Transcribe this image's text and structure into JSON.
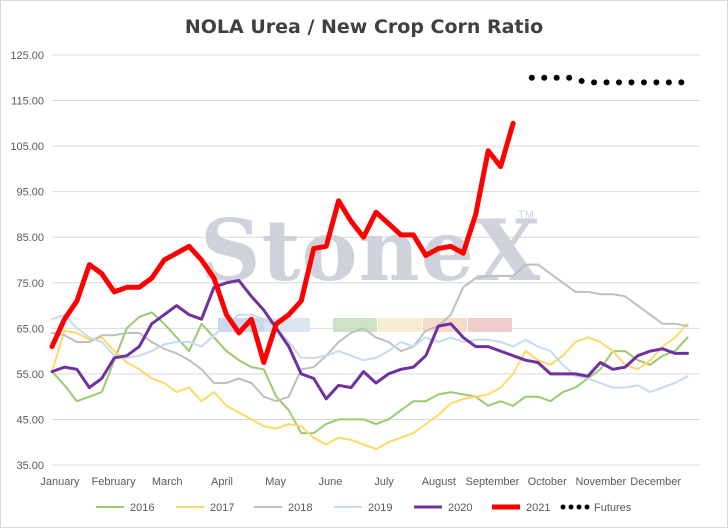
{
  "watermark": {
    "text": "StoneX",
    "tm": "TM"
  },
  "chart_data": {
    "type": "line",
    "title": "NOLA Urea / New Crop Corn Ratio",
    "xlabel": "",
    "ylabel": "",
    "ylim": [
      35,
      125
    ],
    "xlim": [
      0,
      52
    ],
    "y_ticks": [
      "35.00",
      "45.00",
      "55.00",
      "65.00",
      "75.00",
      "85.00",
      "95.00",
      "105.00",
      "115.00",
      "125.00"
    ],
    "x_ticks": [
      {
        "label": "January",
        "x": 0
      },
      {
        "label": "February",
        "x": 4.3
      },
      {
        "label": "March",
        "x": 8.6
      },
      {
        "label": "April",
        "x": 13
      },
      {
        "label": "May",
        "x": 17.3
      },
      {
        "label": "June",
        "x": 21.7
      },
      {
        "label": "July",
        "x": 26
      },
      {
        "label": "August",
        "x": 30.4
      },
      {
        "label": "September",
        "x": 34.7
      },
      {
        "label": "October",
        "x": 39.1
      },
      {
        "label": "November",
        "x": 43.4
      },
      {
        "label": "December",
        "x": 47.8
      }
    ],
    "grid": true,
    "legend": "bottom",
    "series": [
      {
        "name": "2016",
        "color": "#9ccb6d",
        "width": 2,
        "style": "solid",
        "values": [
          55.5,
          52.5,
          49,
          50,
          51,
          58,
          65,
          67.5,
          68.5,
          66,
          63,
          60,
          66,
          63,
          60,
          58,
          56.5,
          56,
          50,
          47,
          42,
          42,
          44,
          45,
          45,
          45,
          44,
          45,
          47,
          49,
          49,
          50.5,
          51,
          50.5,
          50,
          48,
          49,
          48,
          50,
          50,
          49,
          51,
          52,
          54,
          56,
          60,
          60,
          58,
          57,
          59,
          60,
          63
        ]
      },
      {
        "name": "2017",
        "color": "#ffd966",
        "width": 2,
        "style": "solid",
        "values": [
          55.5,
          64.5,
          64,
          62.5,
          63,
          60,
          57.5,
          56,
          54,
          53,
          51,
          52,
          49,
          51,
          48,
          46.5,
          45,
          43.5,
          43,
          44,
          43.5,
          41,
          39.5,
          41,
          40.5,
          39.5,
          38.5,
          40,
          41,
          42,
          44,
          46,
          48.5,
          49.5,
          50,
          50.5,
          52,
          55,
          60,
          58,
          57,
          59,
          62,
          63,
          62,
          60,
          57,
          56,
          58,
          61,
          63,
          66
        ]
      },
      {
        "name": "2018",
        "color": "#bfbfbf",
        "width": 2,
        "style": "solid",
        "values": [
          64,
          63.5,
          62,
          62,
          63.5,
          63.5,
          64,
          64,
          62,
          60.5,
          59.5,
          58,
          56,
          53,
          53,
          54,
          53,
          50,
          49,
          50,
          56,
          56.5,
          59,
          62,
          64,
          65,
          63,
          62,
          60,
          61,
          64.5,
          65.5,
          68,
          74,
          76,
          76.5,
          76.5,
          76.5,
          79,
          79,
          77,
          75,
          73,
          73,
          72.5,
          72.5,
          72,
          70,
          68,
          66,
          66,
          65.5
        ]
      },
      {
        "name": "2019",
        "color": "#c6dbef",
        "width": 2,
        "style": "solid",
        "values": [
          67,
          68,
          65,
          63,
          62,
          59,
          58.5,
          59,
          60,
          61.5,
          62,
          62,
          61,
          63.5,
          66,
          68,
          68,
          67,
          65,
          62,
          58.5,
          58.5,
          59,
          60,
          59,
          58,
          58.5,
          60,
          62,
          61,
          63,
          62,
          63,
          62,
          62.5,
          62.5,
          62,
          61,
          62.5,
          61,
          60,
          57,
          54.5,
          54,
          53,
          52,
          52,
          52.5,
          51,
          52,
          53,
          54.5
        ]
      },
      {
        "name": "2020",
        "color": "#7030a0",
        "width": 3,
        "style": "solid",
        "values": [
          55.5,
          56.5,
          56,
          52,
          54,
          58.5,
          59,
          61,
          66,
          68,
          70,
          68,
          67,
          74,
          75,
          75.5,
          72,
          69,
          65,
          61,
          55,
          54,
          49.5,
          52.5,
          52,
          55.5,
          53,
          55,
          56,
          56.5,
          59,
          65.5,
          66,
          63,
          61,
          61,
          60,
          59,
          58,
          57.5,
          55,
          55,
          55,
          54.5,
          57.5,
          56,
          56.5,
          59,
          60,
          60.5,
          59.5,
          59.5
        ]
      },
      {
        "name": "2021",
        "color": "#ff0000",
        "width": 5,
        "style": "solid",
        "values": [
          61,
          67,
          71,
          79,
          77,
          73,
          74,
          74,
          76,
          80,
          81.5,
          83,
          80,
          76,
          68,
          64,
          67,
          57.5,
          66,
          68,
          71,
          82.5,
          83,
          93,
          88.5,
          85,
          90.5,
          88,
          85.5,
          85.5,
          81,
          82.5,
          83,
          81.5,
          90,
          104,
          100.5,
          110
        ]
      },
      {
        "name": "Futures",
        "color": "#000000",
        "width": 4,
        "style": "dotted",
        "x": [
          38.5,
          39.5,
          40.5,
          41.5,
          42.5,
          43.5,
          44.5,
          45.5,
          46.5,
          47.5,
          48.5,
          49.5,
          50.5
        ],
        "values": [
          120,
          120,
          120,
          120,
          119.3,
          119,
          119,
          119,
          119,
          119,
          119,
          119,
          119
        ]
      }
    ]
  }
}
